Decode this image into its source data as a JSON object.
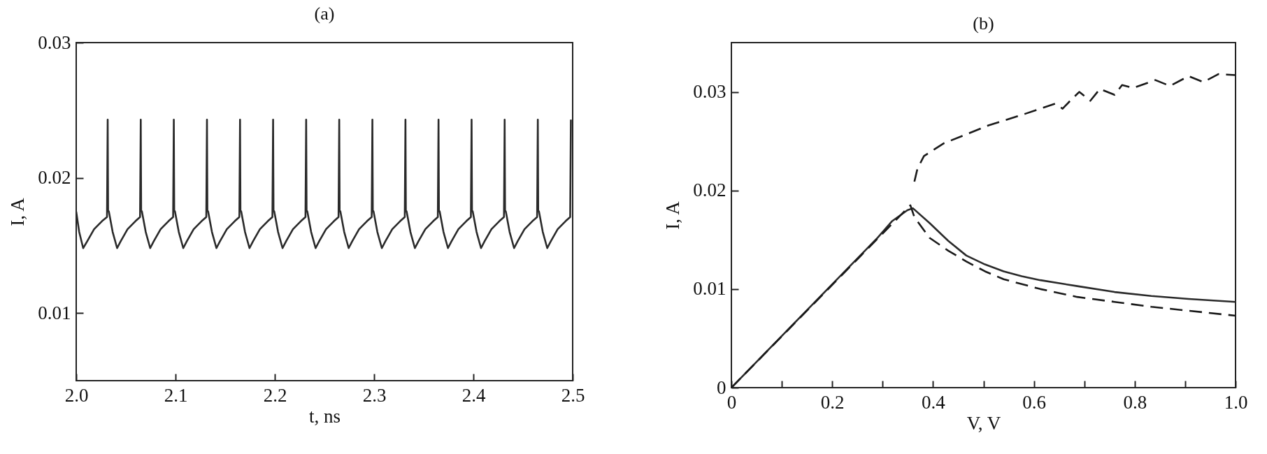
{
  "chart_data": [
    {
      "type": "line",
      "title": "(a)",
      "xlabel": "t, ns",
      "ylabel": "I, A",
      "xlim": [
        2.0,
        2.5
      ],
      "ylim": [
        0.005,
        0.03
      ],
      "xticks": [
        {
          "value": 2,
          "label": "2.0"
        },
        2.1,
        2.2,
        2.3,
        2.4,
        2.5
      ],
      "yticks": [
        0.01,
        0.02,
        0.03
      ],
      "grid": false,
      "series": [
        {
          "color": "#2a2a2a",
          "line_style": "solid",
          "x": [
            2.0,
            2.003,
            2.007,
            2.011,
            2.018,
            2.026,
            2.031,
            2.0317,
            2.0321,
            2.0329,
            2.0367,
            2.0412,
            2.0447,
            2.0517,
            2.0597,
            2.0643,
            2.065,
            2.0654,
            2.0662,
            2.07,
            2.0745,
            2.078,
            2.085,
            2.093,
            2.0976,
            2.0983,
            2.0987,
            2.0995,
            2.1033,
            2.1078,
            2.1113,
            2.1183,
            2.1263,
            2.131,
            2.1317,
            2.1321,
            2.1329,
            2.1367,
            2.1412,
            2.1447,
            2.1517,
            2.1597,
            2.1643,
            2.165,
            2.1654,
            2.1662,
            2.17,
            2.1745,
            2.178,
            2.185,
            2.193,
            2.1976,
            2.1983,
            2.1987,
            2.1995,
            2.2033,
            2.2078,
            2.2113,
            2.2183,
            2.2263,
            2.2309,
            2.2316,
            2.232,
            2.2328,
            2.2366,
            2.2411,
            2.2446,
            2.2516,
            2.2596,
            2.2642,
            2.2649,
            2.2653,
            2.2661,
            2.2699,
            2.2744,
            2.2779,
            2.2849,
            2.2929,
            2.2976,
            2.2983,
            2.2987,
            2.2995,
            2.3033,
            2.3078,
            2.3113,
            2.3183,
            2.3263,
            2.3309,
            2.3316,
            2.332,
            2.3328,
            2.3366,
            2.3411,
            2.3446,
            2.3516,
            2.3596,
            2.3642,
            2.3649,
            2.3653,
            2.3661,
            2.3699,
            2.3744,
            2.3779,
            2.3849,
            2.3929,
            2.3975,
            2.3982,
            2.3986,
            2.3994,
            2.4032,
            2.4077,
            2.4112,
            2.4182,
            2.4262,
            2.4308,
            2.4315,
            2.4319,
            2.4327,
            2.4365,
            2.441,
            2.4445,
            2.4515,
            2.4595,
            2.4642,
            2.4649,
            2.4653,
            2.4661,
            2.4699,
            2.4744,
            2.4779,
            2.4849,
            2.4929,
            2.4975,
            2.4982
          ],
          "values": [
            0.0175,
            0.016,
            0.0148,
            0.0153,
            0.0162,
            0.0168,
            0.0171,
            0.0243,
            0.0176,
            0.0175,
            0.016,
            0.0148,
            0.0153,
            0.0162,
            0.0168,
            0.0171,
            0.0243,
            0.0176,
            0.0175,
            0.016,
            0.0148,
            0.0153,
            0.0162,
            0.0168,
            0.0171,
            0.0243,
            0.0176,
            0.0175,
            0.016,
            0.0148,
            0.0153,
            0.0162,
            0.0168,
            0.0171,
            0.0243,
            0.0176,
            0.0175,
            0.016,
            0.0148,
            0.0153,
            0.0162,
            0.0168,
            0.0171,
            0.0243,
            0.0176,
            0.0175,
            0.016,
            0.0148,
            0.0153,
            0.0162,
            0.0168,
            0.0171,
            0.0243,
            0.0176,
            0.0175,
            0.016,
            0.0148,
            0.0153,
            0.0162,
            0.0168,
            0.0171,
            0.0243,
            0.0176,
            0.0175,
            0.016,
            0.0148,
            0.0153,
            0.0162,
            0.0168,
            0.0171,
            0.0243,
            0.0176,
            0.0175,
            0.016,
            0.0148,
            0.0153,
            0.0162,
            0.0168,
            0.0171,
            0.0243,
            0.0176,
            0.0175,
            0.016,
            0.0148,
            0.0153,
            0.0162,
            0.0168,
            0.0171,
            0.0243,
            0.0176,
            0.0175,
            0.016,
            0.0148,
            0.0153,
            0.0162,
            0.0168,
            0.0171,
            0.0243,
            0.0176,
            0.0175,
            0.016,
            0.0148,
            0.0153,
            0.0162,
            0.0168,
            0.0171,
            0.0243,
            0.0176,
            0.0175,
            0.016,
            0.0148,
            0.0153,
            0.0162,
            0.0168,
            0.0171,
            0.0243,
            0.0176,
            0.0175,
            0.016,
            0.0148,
            0.0153,
            0.0162,
            0.0168,
            0.0171,
            0.0243,
            0.0176,
            0.0175,
            0.016,
            0.0148,
            0.0153,
            0.0162,
            0.0168,
            0.0171,
            0.0243
          ]
        }
      ]
    },
    {
      "type": "line",
      "title": "(b)",
      "xlabel": "V, V",
      "ylabel": "I, A",
      "xlim": [
        0,
        1
      ],
      "ylim": [
        0,
        0.035
      ],
      "xticks": [
        0,
        {
          "value": 0.1,
          "label": null
        },
        0.2,
        {
          "value": 0.3,
          "label": null
        },
        0.4,
        {
          "value": 0.5,
          "label": null
        },
        0.6,
        {
          "value": 0.7,
          "label": null
        },
        0.8,
        {
          "value": 0.9,
          "label": null
        },
        {
          "value": 1,
          "label": "1.0"
        }
      ],
      "yticks": [
        0,
        0.01,
        0.02,
        0.03
      ],
      "grid": false,
      "series": [
        {
          "color": "#2a2a2a",
          "line_style": "solid",
          "x": [
            0,
            0.29,
            0.319,
            0.349,
            0.36,
            0.393,
            0.43,
            0.466,
            0.503,
            0.54,
            0.576,
            0.613,
            0.686,
            0.76,
            0.833,
            0.907,
            1.0
          ],
          "values": [
            0,
            0.0152,
            0.0169,
            0.018,
            0.0182,
            0.0167,
            0.0149,
            0.0134,
            0.0125,
            0.0118,
            0.0113,
            0.0109,
            0.0103,
            0.0097,
            0.0093,
            0.009,
            0.0087
          ]
        },
        {
          "color": "#1a1a1a",
          "line_style": "dashed",
          "x": [
            0,
            0.355,
            0.363,
            0.393,
            0.43,
            0.466,
            0.503,
            0.54,
            0.613,
            0.686,
            0.76,
            0.833,
            0.907,
            1.0
          ],
          "values": [
            0,
            0.0185,
            0.0173,
            0.0152,
            0.0139,
            0.0128,
            0.0118,
            0.011,
            0.01,
            0.0092,
            0.0087,
            0.0082,
            0.0078,
            0.0073
          ]
        },
        {
          "color": "#1a1a1a",
          "line_style": "dashed",
          "x": [
            0.363,
            0.369,
            0.382,
            0.422,
            0.466,
            0.51,
            0.584,
            0.613,
            0.642,
            0.657,
            0.672,
            0.69,
            0.712,
            0.731,
            0.76,
            0.775,
            0.797,
            0.841,
            0.87,
            0.907,
            0.936,
            0.966,
            1.0
          ],
          "values": [
            0.0209,
            0.0222,
            0.0235,
            0.0248,
            0.0257,
            0.0266,
            0.0278,
            0.0283,
            0.0288,
            0.0283,
            0.0291,
            0.03,
            0.0291,
            0.0303,
            0.0297,
            0.0307,
            0.0304,
            0.0312,
            0.0306,
            0.0316,
            0.031,
            0.0318,
            0.0317
          ]
        }
      ]
    }
  ]
}
